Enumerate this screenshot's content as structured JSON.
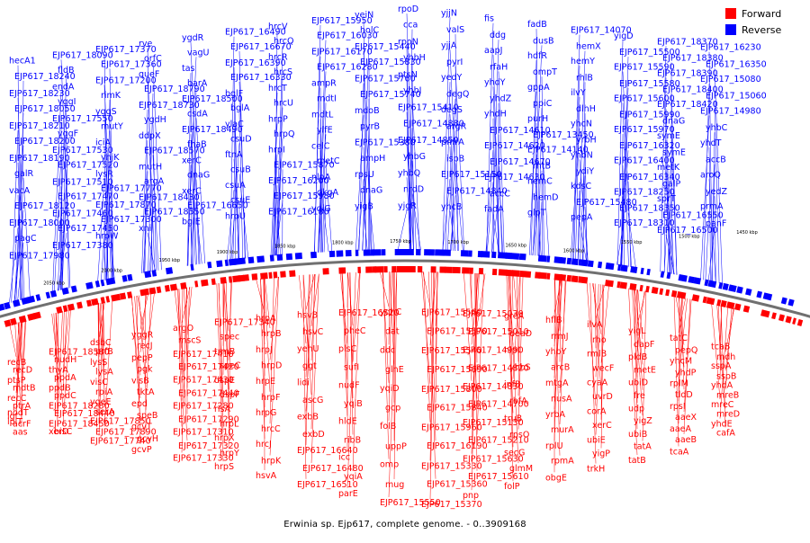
{
  "caption": "Erwinia sp. Ejp617, complete genome. - 0..3909168",
  "legend": [
    {
      "label": "Forward",
      "color": "#ff0000"
    },
    {
      "label": "Reverse",
      "color": "#0000ff"
    }
  ],
  "colors": {
    "forward": "#ff0000",
    "reverse": "#0000ff",
    "backbone": "#707070"
  },
  "scale_labels": [
    "2050 kbp",
    "2000 kbp",
    "1950 kbp",
    "1900 kbp",
    "1850 kbp",
    "1800 kbp",
    "1750 kbp",
    "1700 kbp",
    "1650 kbp",
    "1600 kbp",
    "1550 kbp",
    "1500 kbp",
    "1450 kbp"
  ],
  "reverse_labels": [
    "hecA1",
    "EJP617_18240",
    "EJP617_18230",
    "EJP617_18050",
    "EJP617_18210",
    "EJP617_18200",
    "EJP617_18190",
    "galR",
    "vacA",
    "EJP617_18120",
    "EJP617_18000",
    "pagC",
    "EJP617_17980",
    "EJP617_18090",
    "fldB",
    "endA",
    "yggI",
    "EJP617_17550",
    "yggF",
    "EJP617_17530",
    "EJP617_17520",
    "EJP617_17510",
    "EJP617_17470",
    "EJP617_17460",
    "EJP617_17450",
    "EJP617_17380",
    "EJP617_17370",
    "EJP617_17360",
    "EJP617_17200",
    "rimK",
    "yggS",
    "mutY",
    "iciA",
    "yhjK",
    "lysR",
    "EJP617_17770",
    "EJP617_17870",
    "EJP617_17300",
    "hrpW",
    "rve",
    "orfC",
    "queF",
    "EJP617_18790",
    "EJP617_18730",
    "ygdH",
    "ddpX",
    "EJP617_18570",
    "mutH",
    "argA",
    "EJP617_18430",
    "EJP617_18550",
    "xni",
    "ygdR",
    "vagU",
    "tas",
    "barA",
    "EJP617_18500",
    "csdA",
    "EJP617_18490",
    "fhaB",
    "xerC",
    "dnaG",
    "xerC",
    "EJP617_16650",
    "bglE",
    "EJP617_16490",
    "EJP617_16670",
    "EJP617_16390",
    "EJP617_16330",
    "bglF",
    "bglA",
    "ylaC",
    "csuD",
    "ftnA",
    "csuB",
    "csuA",
    "csuE",
    "hrpU",
    "hrcV",
    "hrcQ",
    "hrcR",
    "hrcS",
    "hrcT",
    "hrcU",
    "hrpP",
    "hrpQ",
    "hrpI",
    "EJP617_15870",
    "EJP617_16200",
    "EJP617_15980",
    "EJP617_16180",
    "EJP617_15950",
    "EJP617_16030",
    "EJP617_16170",
    "EJP617_16280",
    "ampR",
    "mdtI",
    "mdtL",
    "ylfE",
    "celC",
    "metC",
    "nlpA",
    "dkgA",
    "yqiG",
    "yeiN",
    "holC",
    "EJP617_15440",
    "EJP617_15830",
    "EJP617_15760",
    "EJP617_15740",
    "mdoB",
    "pyrB",
    "EJP617_15380",
    "ampH",
    "rpsU",
    "dnaG",
    "yigB",
    "rpoD",
    "cca",
    "rpoN",
    "yhbH",
    "ptsN",
    "yhbJ",
    "EJP617_15410",
    "EJP617_14880",
    "EJP617_14850",
    "yhbG",
    "yhbQ",
    "nrdD",
    "yjgR",
    "yjjN",
    "valS",
    "yjjA",
    "pyrI",
    "yedY",
    "degQ",
    "degS",
    "argR",
    "pmrA",
    "ispB",
    "EJP617_15150",
    "EJP617_14840",
    "yhcB",
    "fis",
    "ddg",
    "aapJ",
    "rfaH",
    "yhdY",
    "yhdZ",
    "yhdH",
    "EJP617_14610",
    "EJP617_14620",
    "EJP617_14670",
    "EJP617_14630",
    "accC",
    "fadA",
    "fadB",
    "dusB",
    "hdfR",
    "ompT",
    "gppA",
    "ppiC",
    "purH",
    "EJP617_13450",
    "EJP617_14140",
    "rhtB",
    "hemC",
    "hemD",
    "glpT",
    "EJP617_14070",
    "hemX",
    "hemY",
    "rhlB",
    "ilvY",
    "dlhH",
    "yhcN",
    "yrbH",
    "yhbN",
    "ydiY",
    "kdsC",
    "EJP617_15480",
    "pepA",
    "yigD",
    "EJP617_15500",
    "EJP617_15590",
    "EJP617_15580",
    "EJP617_15600",
    "EJP617_15990",
    "EJP617_15970",
    "EJP617_16320",
    "EJP617_16400",
    "EJP617_16340",
    "EJP617_18250",
    "EJP617_18350",
    "EJP617_18310",
    "EJP617_18370",
    "EJP617_18380",
    "EJP617_18390",
    "EJP617_18400",
    "EJP617_18420",
    "dnaG",
    "symE",
    "symE",
    "metK",
    "galP",
    "sprT",
    "EJP617_16550",
    "EJP617_16500",
    "EJP617_16230",
    "EJP617_16350",
    "EJP617_15080",
    "EJP617_15060",
    "EJP617_14980",
    "yhbC",
    "yhdT",
    "accB",
    "aroQ",
    "yedZ",
    "prmA",
    "panF"
  ],
  "forward_labels": [
    "recB",
    "recD",
    "ptsP",
    "mdtB",
    "recC",
    "ptrA",
    "lgt",
    "acrF",
    "nodT",
    "aas",
    "lplT",
    "EJP617_18580",
    "nudH",
    "thyA",
    "ppdA",
    "ppdB",
    "ppdC",
    "EJP617_18280",
    "EJP617_18440",
    "EJP617_18450",
    "bisC",
    "xerD",
    "dsbC",
    "prfB",
    "lysS",
    "lysA",
    "visC",
    "rpiA",
    "ygeE",
    "serA",
    "EJP617_17850",
    "EJP617_17890",
    "EJP617_17740",
    "yggR",
    "recJ",
    "pepP",
    "pgk",
    "visB",
    "tktA",
    "epd",
    "speB",
    "gcvT",
    "gcvH",
    "gcvP",
    "argO",
    "mscS",
    "EJP617_17410",
    "EJP617_17420",
    "EJP617_17430",
    "EJP617_17440",
    "EJP617_17280",
    "EJP617_17290",
    "EJP617_17310",
    "EJP617_17320",
    "EJP617_17330",
    "EJP617_17340",
    "spec",
    "trmB",
    "speC",
    "dspE",
    "dspF",
    "rlsA",
    "hrpL",
    "hrpX",
    "hrpY",
    "hrpS",
    "hrpA",
    "hrpB",
    "hrpJ",
    "hrpD",
    "hrpE",
    "hrpF",
    "hrpG",
    "hrcC",
    "hrcJ",
    "hrpK",
    "hsvA",
    "hsvB",
    "hsvC",
    "yehU",
    "ggt",
    "lidi",
    "ascG",
    "exbB",
    "exbD",
    "EJP617_16640",
    "EJP617_16480",
    "EJP617_16510",
    "EJP617_16520",
    "pheC",
    "plsC",
    "sufI",
    "nudF",
    "yqiB",
    "hldE",
    "ribB",
    "icc",
    "yqiA",
    "parE",
    "yqhC",
    "dat",
    "ddc",
    "glnE",
    "yqiD",
    "gcp",
    "folB",
    "uppP",
    "omp",
    "mug",
    "EJP617_15550",
    "EJP617_15560",
    "EJP617_15570",
    "EJP617_15540",
    "EJP617_15690",
    "EJP617_15800",
    "EJP617_15840",
    "EJP617_15960",
    "EJP617_16190",
    "EJP617_15330",
    "EJP617_15360",
    "EJP617_15370",
    "EJP617_15030",
    "EJP617_15010",
    "EJP617_14990",
    "EJP617_14820",
    "EJP617_14830",
    "EJP617_14700",
    "EJP617_15130",
    "EJP617_15210",
    "EJP617_15630",
    "EJP617_15610",
    "pnp",
    "greA",
    "deaD",
    "nlpI",
    "yhbS",
    "infB",
    "rbfA",
    "truB",
    "rpsO",
    "secG",
    "glmM",
    "folP",
    "hflB",
    "rrmJ",
    "yhbY",
    "arcB",
    "mtgA",
    "nusA",
    "yrbA",
    "murA",
    "rplU",
    "rpmA",
    "obgE",
    "ilvA",
    "rho",
    "rmlB",
    "wecF",
    "cyaA",
    "uvrD",
    "corA",
    "xerC",
    "ubiE",
    "yigP",
    "trkH",
    "yigL",
    "dapF",
    "pldB",
    "metE",
    "ubiD",
    "fre",
    "udp",
    "yigZ",
    "ubiB",
    "tatA",
    "tatB",
    "tatC",
    "pepQ",
    "yhcM",
    "yhdP",
    "rplM",
    "tldD",
    "rpsI",
    "aaeX",
    "aaeA",
    "aaeB",
    "tcaA",
    "tcaB",
    "mdh",
    "sspA",
    "sspB",
    "yhdA",
    "mreB",
    "mreC",
    "mreD",
    "yhdE",
    "cafA"
  ]
}
